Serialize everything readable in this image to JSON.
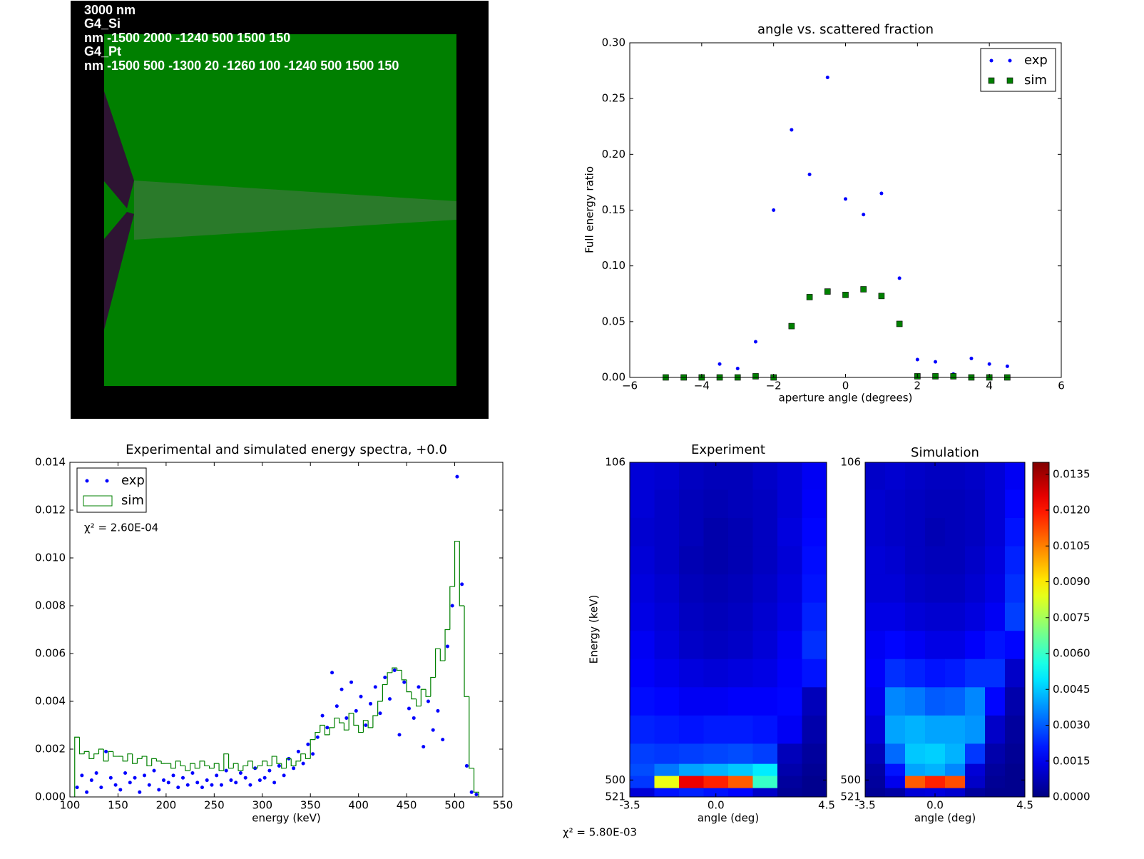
{
  "geometry": {
    "labels": [
      "3000 nm",
      "G4_Si",
      "nm -1500 2000 -1240 500 1500 150",
      "G4_Pt",
      "nm -1500 500 -1300 20 -1260 100 -1240 500 1500 150"
    ]
  },
  "chart_data": [
    {
      "type": "scatter",
      "title": "angle vs. scattered fraction",
      "xlabel": "aperture angle (degrees)",
      "ylabel": "Full energy ratio",
      "x": [
        -5,
        -4.5,
        -4,
        -3.5,
        -3,
        -2.5,
        -2,
        -1.5,
        -1,
        -0.5,
        0,
        0.5,
        1,
        1.5,
        2,
        2.5,
        3,
        3.5,
        4,
        4.5
      ],
      "series": [
        {
          "name": "exp",
          "color": "#0000ff",
          "marker": "dot",
          "values": [
            0,
            0,
            0,
            0.012,
            0.008,
            0.032,
            0.15,
            0.222,
            0.182,
            0.269,
            0.16,
            0.146,
            0.165,
            0.089,
            0.016,
            0.014,
            0.003,
            0.017,
            0.012,
            0.01
          ]
        },
        {
          "name": "sim",
          "color": "#008000",
          "marker": "square",
          "values": [
            0,
            0,
            0,
            0,
            0,
            0.001,
            0,
            0.046,
            0.072,
            0.077,
            0.074,
            0.079,
            0.073,
            0.048,
            0.001,
            0.001,
            0.001,
            0,
            0,
            0
          ]
        }
      ],
      "xlim": [
        -6,
        6
      ],
      "xticks": [
        {
          "value": -6,
          "label": "−6"
        },
        {
          "value": -4,
          "label": "−4"
        },
        {
          "value": -2,
          "label": "−2"
        },
        0,
        2,
        4,
        6
      ],
      "ylim": [
        0,
        0.3
      ],
      "yticks": [
        {
          "value": 0,
          "label": "0.00"
        },
        {
          "value": 0.05,
          "label": "0.05"
        },
        {
          "value": 0.1,
          "label": "0.10"
        },
        {
          "value": 0.15,
          "label": "0.15"
        },
        {
          "value": 0.2,
          "label": "0.20"
        },
        {
          "value": 0.25,
          "label": "0.25"
        },
        {
          "value": 0.3,
          "label": "0.30"
        }
      ],
      "legend": "upper right"
    },
    {
      "type": "combo",
      "title": "Experimental and simulated energy spectra, +0.0",
      "xlabel": "energy (keV)",
      "annotation": "χ² = 2.60E-04",
      "series": [
        {
          "name": "exp",
          "type": "scatter",
          "color": "#0000ff",
          "x": [
            107.5,
            112.5,
            117.5,
            122.5,
            127.5,
            132.5,
            137.5,
            142.5,
            147.5,
            152.5,
            157.5,
            162.5,
            167.5,
            172.5,
            177.5,
            182.5,
            187.5,
            192.5,
            197.5,
            202.5,
            207.5,
            212.5,
            217.5,
            222.5,
            227.5,
            232.5,
            237.5,
            242.5,
            247.5,
            252.5,
            257.5,
            262.5,
            267.5,
            272.5,
            277.5,
            282.5,
            287.5,
            292.5,
            297.5,
            302.5,
            307.5,
            312.5,
            317.5,
            322.5,
            327.5,
            332.5,
            337.5,
            342.5,
            347.5,
            352.5,
            357.5,
            362.5,
            367.5,
            372.5,
            377.5,
            382.5,
            387.5,
            392.5,
            397.5,
            402.5,
            407.5,
            412.5,
            417.5,
            422.5,
            427.5,
            432.5,
            437.5,
            442.5,
            447.5,
            452.5,
            457.5,
            462.5,
            467.5,
            472.5,
            477.5,
            482.5,
            487.5,
            492.5,
            497.5,
            502.5,
            507.5,
            512.5,
            517.5,
            522.5
          ],
          "values": [
            0.0004,
            0.0009,
            0.0002,
            0.0007,
            0.001,
            0.0004,
            0.0019,
            0.0008,
            0.0005,
            0.0003,
            0.001,
            0.0006,
            0.0008,
            0.0002,
            0.0009,
            0.0005,
            0.0011,
            0.0003,
            0.0007,
            0.0006,
            0.0009,
            0.0004,
            0.0008,
            0.0005,
            0.001,
            0.0006,
            0.0004,
            0.0007,
            0.0005,
            0.0009,
            0.0005,
            0.0011,
            0.0007,
            0.0006,
            0.001,
            0.0008,
            0.0005,
            0.0012,
            0.0007,
            0.0008,
            0.0011,
            0.0006,
            0.0013,
            0.0009,
            0.0016,
            0.0012,
            0.0019,
            0.0014,
            0.0022,
            0.0018,
            0.0025,
            0.0034,
            0.0029,
            0.0052,
            0.0038,
            0.0045,
            0.0033,
            0.0048,
            0.0036,
            0.0042,
            0.003,
            0.0039,
            0.0046,
            0.0035,
            0.005,
            0.0041,
            0.0053,
            0.0026,
            0.0048,
            0.0037,
            0.0033,
            0.0046,
            0.0021,
            0.004,
            0.0028,
            0.0036,
            0.0024,
            0.0063,
            0.008,
            0.0134,
            0.0089,
            0.0013,
            0.0002,
            0.0001
          ]
        },
        {
          "name": "sim",
          "type": "step",
          "color": "#008000",
          "bins": [
            105,
            110,
            115,
            120,
            125,
            130,
            135,
            140,
            145,
            150,
            155,
            160,
            165,
            170,
            175,
            180,
            185,
            190,
            195,
            200,
            205,
            210,
            215,
            220,
            225,
            230,
            235,
            240,
            245,
            250,
            255,
            260,
            265,
            270,
            275,
            280,
            285,
            290,
            295,
            300,
            305,
            310,
            315,
            320,
            325,
            330,
            335,
            340,
            345,
            350,
            355,
            360,
            365,
            370,
            375,
            380,
            385,
            390,
            395,
            400,
            405,
            410,
            415,
            420,
            425,
            430,
            435,
            440,
            445,
            450,
            455,
            460,
            465,
            470,
            475,
            480,
            485,
            490,
            495,
            500,
            505,
            510,
            515,
            520,
            525
          ],
          "values": [
            0.0025,
            0.0018,
            0.0019,
            0.0016,
            0.0018,
            0.002,
            0.0015,
            0.0019,
            0.0017,
            0.0017,
            0.0015,
            0.0018,
            0.0014,
            0.0016,
            0.0017,
            0.0013,
            0.0016,
            0.0015,
            0.0014,
            0.0014,
            0.0012,
            0.0015,
            0.0013,
            0.0011,
            0.0014,
            0.0012,
            0.0015,
            0.0013,
            0.0012,
            0.0014,
            0.0011,
            0.0018,
            0.0012,
            0.0014,
            0.0011,
            0.0013,
            0.0015,
            0.0012,
            0.0013,
            0.0015,
            0.0013,
            0.0017,
            0.0014,
            0.0012,
            0.0016,
            0.0013,
            0.0015,
            0.0018,
            0.0016,
            0.0024,
            0.0027,
            0.003,
            0.0026,
            0.0029,
            0.0033,
            0.0031,
            0.0028,
            0.0035,
            0.003,
            0.0027,
            0.0032,
            0.0029,
            0.0034,
            0.004,
            0.0047,
            0.0052,
            0.0054,
            0.0053,
            0.0049,
            0.0044,
            0.0041,
            0.0038,
            0.0045,
            0.0042,
            0.005,
            0.0062,
            0.0057,
            0.007,
            0.0088,
            0.0107,
            0.008,
            0.0042,
            0.0012,
            0.0002
          ]
        }
      ],
      "xlim": [
        100,
        550
      ],
      "xticks": [
        100,
        150,
        200,
        250,
        300,
        350,
        400,
        450,
        500,
        550
      ],
      "ylim": [
        0,
        0.014
      ],
      "yticks": [
        {
          "value": 0,
          "label": "0.000"
        },
        {
          "value": 0.002,
          "label": "0.002"
        },
        {
          "value": 0.004,
          "label": "0.004"
        },
        {
          "value": 0.006,
          "label": "0.006"
        },
        {
          "value": 0.008,
          "label": "0.008"
        },
        {
          "value": 0.01,
          "label": "0.010"
        },
        {
          "value": 0.012,
          "label": "0.012"
        },
        {
          "value": 0.014,
          "label": "0.014"
        }
      ],
      "legend": "upper left"
    },
    {
      "type": "heatmap",
      "xlabel": "angle (deg)",
      "ylabel": "Energy (keV)",
      "annotation": "χ² = 5.80E-03",
      "x_edges": [
        -3.5,
        -2.5,
        -1.5,
        -0.5,
        0.5,
        1.5,
        2.5,
        3.5,
        4.5
      ],
      "y_edges": [
        106,
        140,
        175,
        210,
        245,
        280,
        315,
        350,
        385,
        420,
        455,
        480,
        495,
        510,
        521
      ],
      "xlim": [
        -3.5,
        4.5
      ],
      "xticks": [
        -3.5,
        {
          "value": 0,
          "label": "0.0"
        },
        4.5
      ],
      "ylim": [
        106,
        521
      ],
      "y_inverted": true,
      "yticks": [
        106,
        500,
        521
      ],
      "colormap": "jet",
      "colorbar": {
        "lim": [
          0,
          0.014
        ],
        "ticks": [
          {
            "value": 0,
            "label": "0.0000"
          },
          {
            "value": 0.0015,
            "label": "0.0015"
          },
          {
            "value": 0.003,
            "label": "0.0030"
          },
          {
            "value": 0.0045,
            "label": "0.0045"
          },
          {
            "value": 0.006,
            "label": "0.0060"
          },
          {
            "value": 0.0075,
            "label": "0.0075"
          },
          {
            "value": 0.009,
            "label": "0.0090"
          },
          {
            "value": 0.0105,
            "label": "0.0105"
          },
          {
            "value": 0.012,
            "label": "0.0120"
          },
          {
            "value": 0.0135,
            "label": "0.0135"
          }
        ]
      },
      "series": [
        {
          "name": "Experiment",
          "values": [
            [
              0.0012,
              0.0011,
              0.0009,
              0.0008,
              0.0008,
              0.001,
              0.0012,
              0.0016
            ],
            [
              0.0012,
              0.001,
              0.0008,
              0.0007,
              0.0008,
              0.0009,
              0.0012,
              0.0017
            ],
            [
              0.0011,
              0.001,
              0.0008,
              0.0006,
              0.0007,
              0.0009,
              0.0013,
              0.0018
            ],
            [
              0.0012,
              0.001,
              0.0007,
              0.0006,
              0.0007,
              0.0009,
              0.0012,
              0.0019
            ],
            [
              0.0013,
              0.0011,
              0.0008,
              0.0007,
              0.0008,
              0.001,
              0.0013,
              0.002
            ],
            [
              0.0014,
              0.0012,
              0.0009,
              0.0008,
              0.0009,
              0.0011,
              0.0014,
              0.0022
            ],
            [
              0.0016,
              0.0013,
              0.001,
              0.0009,
              0.001,
              0.0012,
              0.0016,
              0.0024
            ],
            [
              0.0017,
              0.0015,
              0.0013,
              0.0012,
              0.0013,
              0.0014,
              0.0017,
              0.002
            ],
            [
              0.0019,
              0.0018,
              0.0016,
              0.0016,
              0.0017,
              0.0017,
              0.0018,
              0.0008
            ],
            [
              0.0022,
              0.0021,
              0.002,
              0.0021,
              0.0021,
              0.002,
              0.0016,
              0.0006
            ],
            [
              0.0026,
              0.0025,
              0.0026,
              0.0027,
              0.0028,
              0.0026,
              0.0008,
              0.0004
            ],
            [
              0.0028,
              0.0034,
              0.004,
              0.0042,
              0.0045,
              0.005,
              0.0006,
              0.0003
            ],
            [
              0.0025,
              0.0085,
              0.0125,
              0.0118,
              0.011,
              0.006,
              0.0004,
              0.0002
            ],
            [
              0.0012,
              0.002,
              0.0022,
              0.002,
              0.0018,
              0.001,
              0.0003,
              0.0002
            ]
          ]
        },
        {
          "name": "Simulation",
          "values": [
            [
              0.001,
              0.0011,
              0.001,
              0.0009,
              0.0009,
              0.001,
              0.0012,
              0.0016
            ],
            [
              0.0011,
              0.001,
              0.0009,
              0.0008,
              0.0008,
              0.0009,
              0.0012,
              0.0018
            ],
            [
              0.0011,
              0.001,
              0.0009,
              0.0007,
              0.0008,
              0.0009,
              0.0012,
              0.002
            ],
            [
              0.0012,
              0.0011,
              0.0009,
              0.0008,
              0.0008,
              0.001,
              0.0013,
              0.0022
            ],
            [
              0.0012,
              0.0012,
              0.001,
              0.0009,
              0.0009,
              0.0011,
              0.0014,
              0.0024
            ],
            [
              0.0014,
              0.0014,
              0.0012,
              0.0011,
              0.0011,
              0.0013,
              0.0016,
              0.0026
            ],
            [
              0.0016,
              0.0018,
              0.0016,
              0.0014,
              0.0014,
              0.0017,
              0.002,
              0.0018
            ],
            [
              0.0017,
              0.0024,
              0.0022,
              0.002,
              0.0021,
              0.0024,
              0.0024,
              0.001
            ],
            [
              0.0015,
              0.0036,
              0.0034,
              0.003,
              0.0031,
              0.0036,
              0.0018,
              0.0006
            ],
            [
              0.0012,
              0.004,
              0.0042,
              0.004,
              0.004,
              0.0038,
              0.001,
              0.0004
            ],
            [
              0.0008,
              0.0032,
              0.0045,
              0.0046,
              0.0042,
              0.0025,
              0.0006,
              0.0003
            ],
            [
              0.0005,
              0.002,
              0.004,
              0.0042,
              0.0036,
              0.0012,
              0.0004,
              0.0002
            ],
            [
              0.0004,
              0.0015,
              0.011,
              0.0118,
              0.0112,
              0.001,
              0.0003,
              0.0002
            ],
            [
              0.0003,
              0.0005,
              0.0012,
              0.0013,
              0.0011,
              0.0004,
              0.0002,
              0.0002
            ]
          ]
        }
      ]
    }
  ]
}
